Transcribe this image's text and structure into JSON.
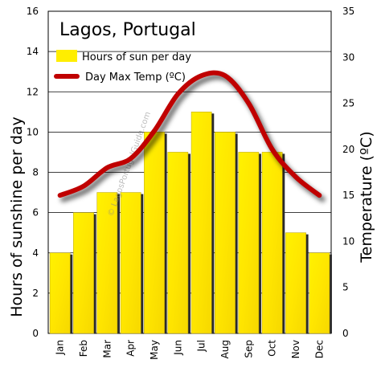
{
  "chart_data": {
    "type": "bar",
    "title": "Lagos, Portugal",
    "categories": [
      "Jan",
      "Feb",
      "Mar",
      "Apr",
      "May",
      "Jun",
      "Jul",
      "Aug",
      "Sep",
      "Oct",
      "Nov",
      "Dec"
    ],
    "series": [
      {
        "name": "Hours of sun per day",
        "type": "bar",
        "axis": "left",
        "color": "#ffee00",
        "values": [
          4,
          6,
          7,
          7,
          10,
          9,
          11,
          10,
          9,
          9,
          5,
          4
        ]
      },
      {
        "name": "Day Max Temp (ºC)",
        "type": "line",
        "axis": "right",
        "color": "#c00000",
        "values": [
          15,
          16,
          18,
          19,
          22,
          26,
          28,
          28,
          25,
          20,
          17,
          15
        ]
      }
    ],
    "ylabel": "Hours of sunshine per day",
    "y2label": "Temperature (ºC)",
    "ylim": [
      0,
      16
    ],
    "y2lim": [
      0,
      35
    ],
    "yticks": [
      0,
      2,
      4,
      6,
      8,
      10,
      12,
      14,
      16
    ],
    "y2ticks": [
      0,
      5,
      10,
      15,
      20,
      25,
      30,
      35
    ],
    "grid": "horizontal",
    "legend_position": "top-left"
  },
  "watermark": "© LagosPortugalGuide.com"
}
